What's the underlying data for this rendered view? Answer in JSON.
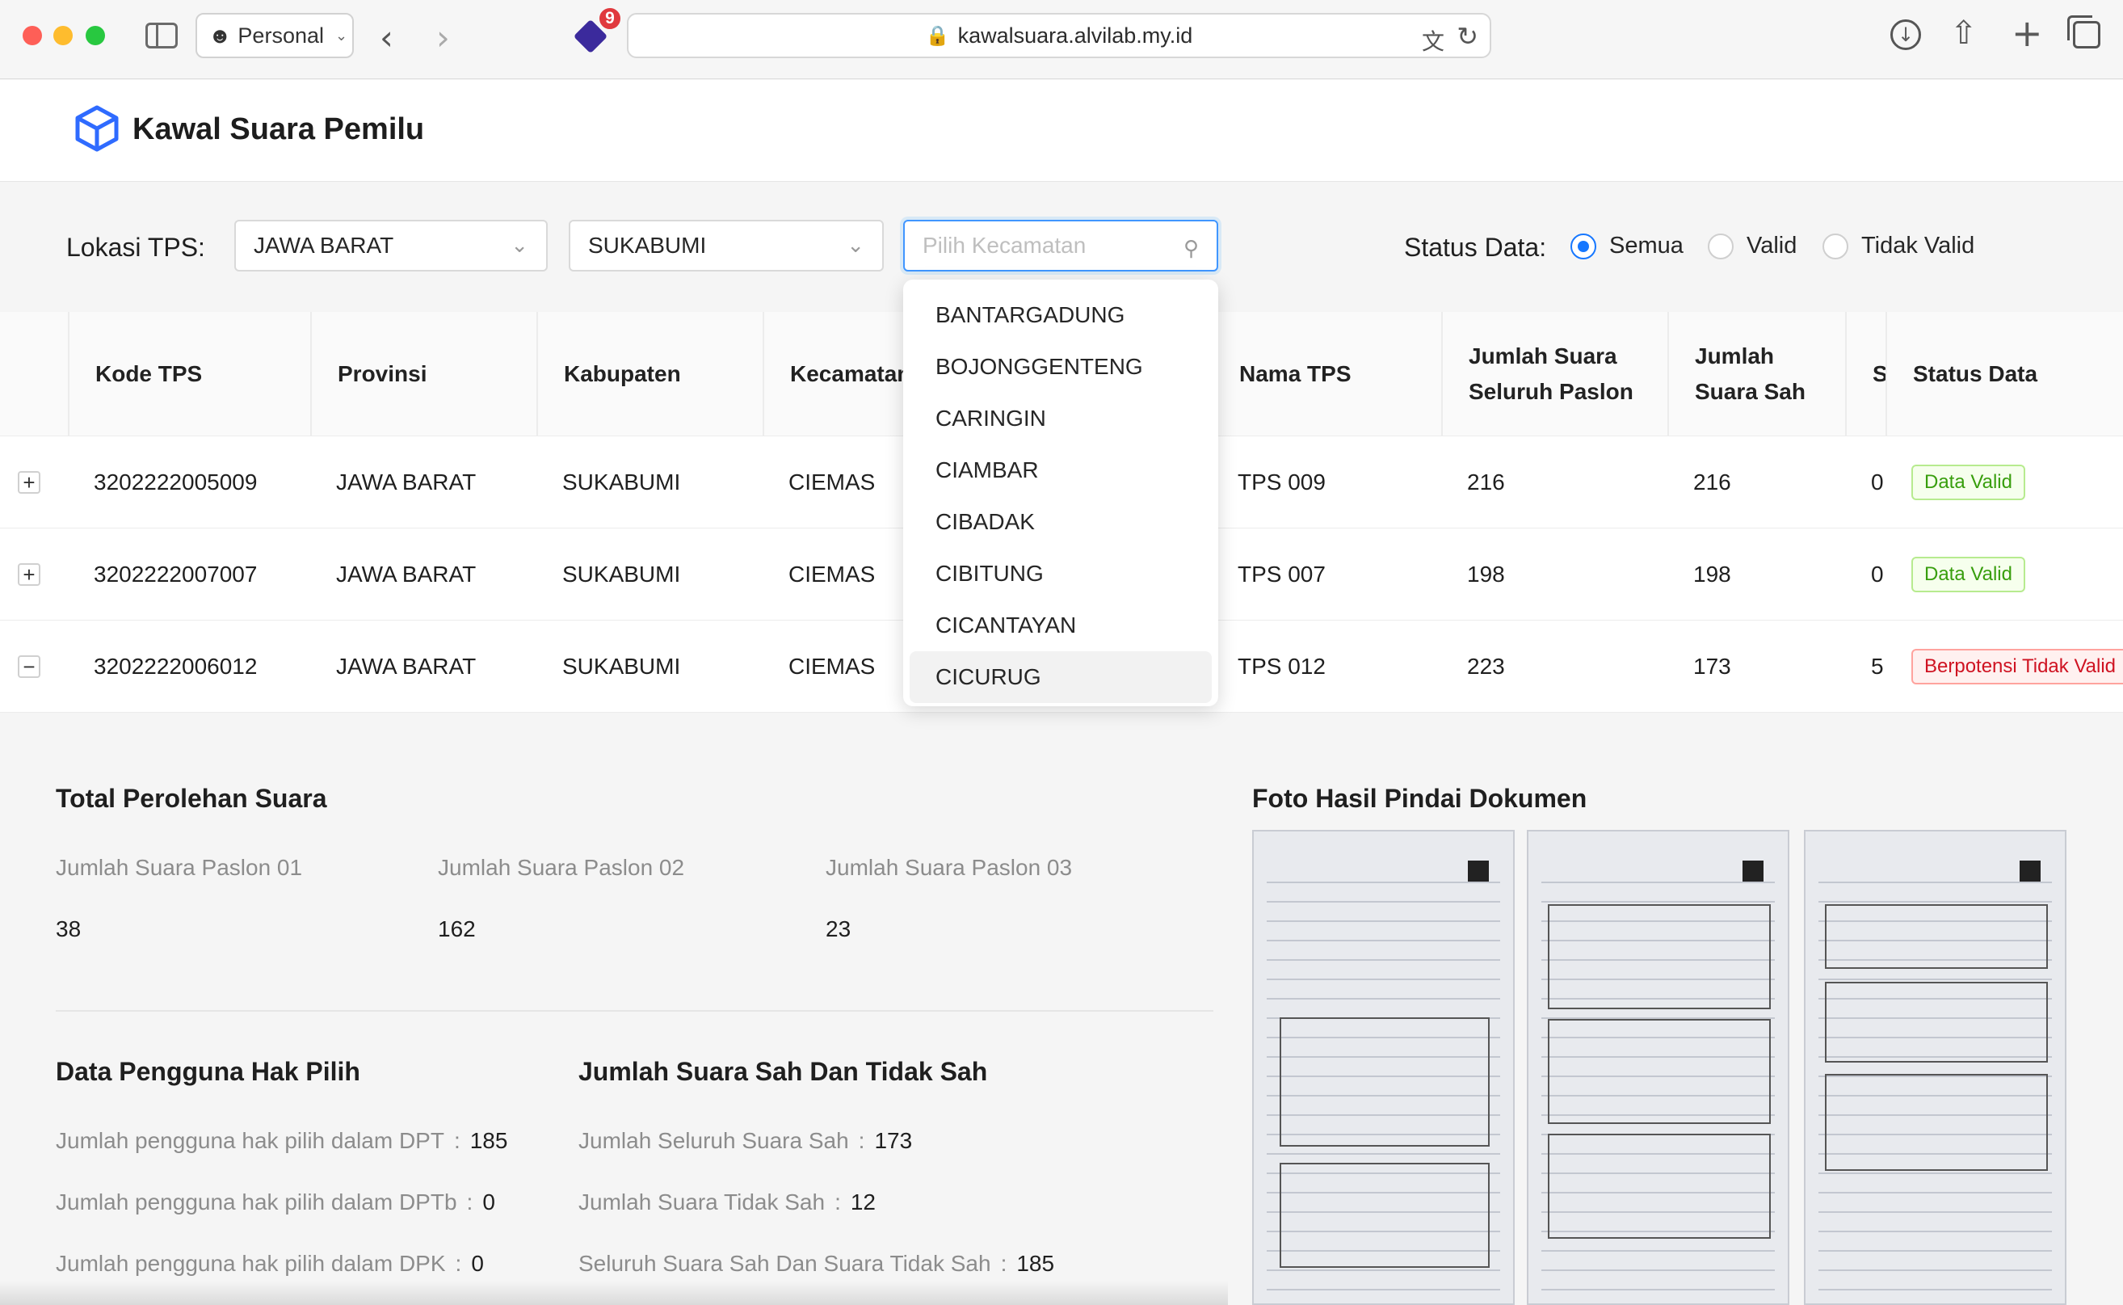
{
  "browser": {
    "profile_label": "Personal",
    "extension_badge": "9",
    "url": "kawalsuara.alvilab.my.id"
  },
  "app": {
    "title": "Kawal Suara Pemilu"
  },
  "filters": {
    "location_label": "Lokasi TPS:",
    "province": "JAWA BARAT",
    "kabupaten": "SUKABUMI",
    "kecamatan_placeholder": "Pilih Kecamatan",
    "status_label": "Status Data:",
    "status_options": [
      "Semua",
      "Valid",
      "Tidak Valid"
    ],
    "status_selected": "Semua"
  },
  "kecamatan_dropdown": {
    "options": [
      "BANTARGADUNG",
      "BOJONGGENTENG",
      "CARINGIN",
      "CIAMBAR",
      "CIBADAK",
      "CIBITUNG",
      "CICANTAYAN",
      "CICURUG"
    ],
    "highlighted": "CICURUG"
  },
  "table": {
    "headers": {
      "kode": "Kode TPS",
      "provinsi": "Provinsi",
      "kabupaten": "Kabupaten",
      "kecamatan": "Kecamatan",
      "nama": "Nama TPS",
      "jumlah_seluruh": "Jumlah Suara Seluruh Paslon",
      "jumlah_sah": "Jumlah Suara Sah",
      "s": "S",
      "status": "Status Data"
    },
    "rows": [
      {
        "expand": "+",
        "kode": "3202222005009",
        "provinsi": "JAWA BARAT",
        "kabupaten": "SUKABUMI",
        "kecamatan": "CIEMAS",
        "nama": "TPS 009",
        "jumlah_seluruh": "216",
        "jumlah_sah": "216",
        "s": "0",
        "status": "Data Valid"
      },
      {
        "expand": "+",
        "kode": "3202222007007",
        "provinsi": "JAWA BARAT",
        "kabupaten": "SUKABUMI",
        "kecamatan": "CIEMAS",
        "nama": "TPS 007",
        "jumlah_seluruh": "198",
        "jumlah_sah": "198",
        "s": "0",
        "status": "Data Valid"
      },
      {
        "expand": "−",
        "kode": "3202222006012",
        "provinsi": "JAWA BARAT",
        "kabupaten": "SUKABUMI",
        "kecamatan": "CIEMAS",
        "nama": "TPS 012",
        "jumlah_seluruh": "223",
        "jumlah_sah": "173",
        "s": "5",
        "status": "Berpotensi Tidak Valid"
      }
    ]
  },
  "details": {
    "total_title": "Total Perolehan Suara",
    "paslon": [
      {
        "label": "Jumlah Suara Paslon 01",
        "value": "38"
      },
      {
        "label": "Jumlah Suara Paslon 02",
        "value": "162"
      },
      {
        "label": "Jumlah Suara Paslon 03",
        "value": "23"
      }
    ],
    "hak_pilih_title": "Data Pengguna Hak Pilih",
    "hak_pilih": [
      {
        "label": "Jumlah pengguna hak pilih dalam DPT",
        "value": "185"
      },
      {
        "label": "Jumlah pengguna hak pilih dalam DPTb",
        "value": "0"
      },
      {
        "label": "Jumlah pengguna hak pilih dalam DPK",
        "value": "0"
      }
    ],
    "sah_title": "Jumlah Suara Sah Dan Tidak Sah",
    "sah": [
      {
        "label": "Jumlah Seluruh Suara Sah",
        "value": "173"
      },
      {
        "label": "Jumlah Suara Tidak Sah",
        "value": "12"
      },
      {
        "label": "Seluruh Suara Sah Dan Suara Tidak Sah",
        "value": "185"
      }
    ],
    "photos_title": "Foto Hasil Pindai Dokumen"
  }
}
